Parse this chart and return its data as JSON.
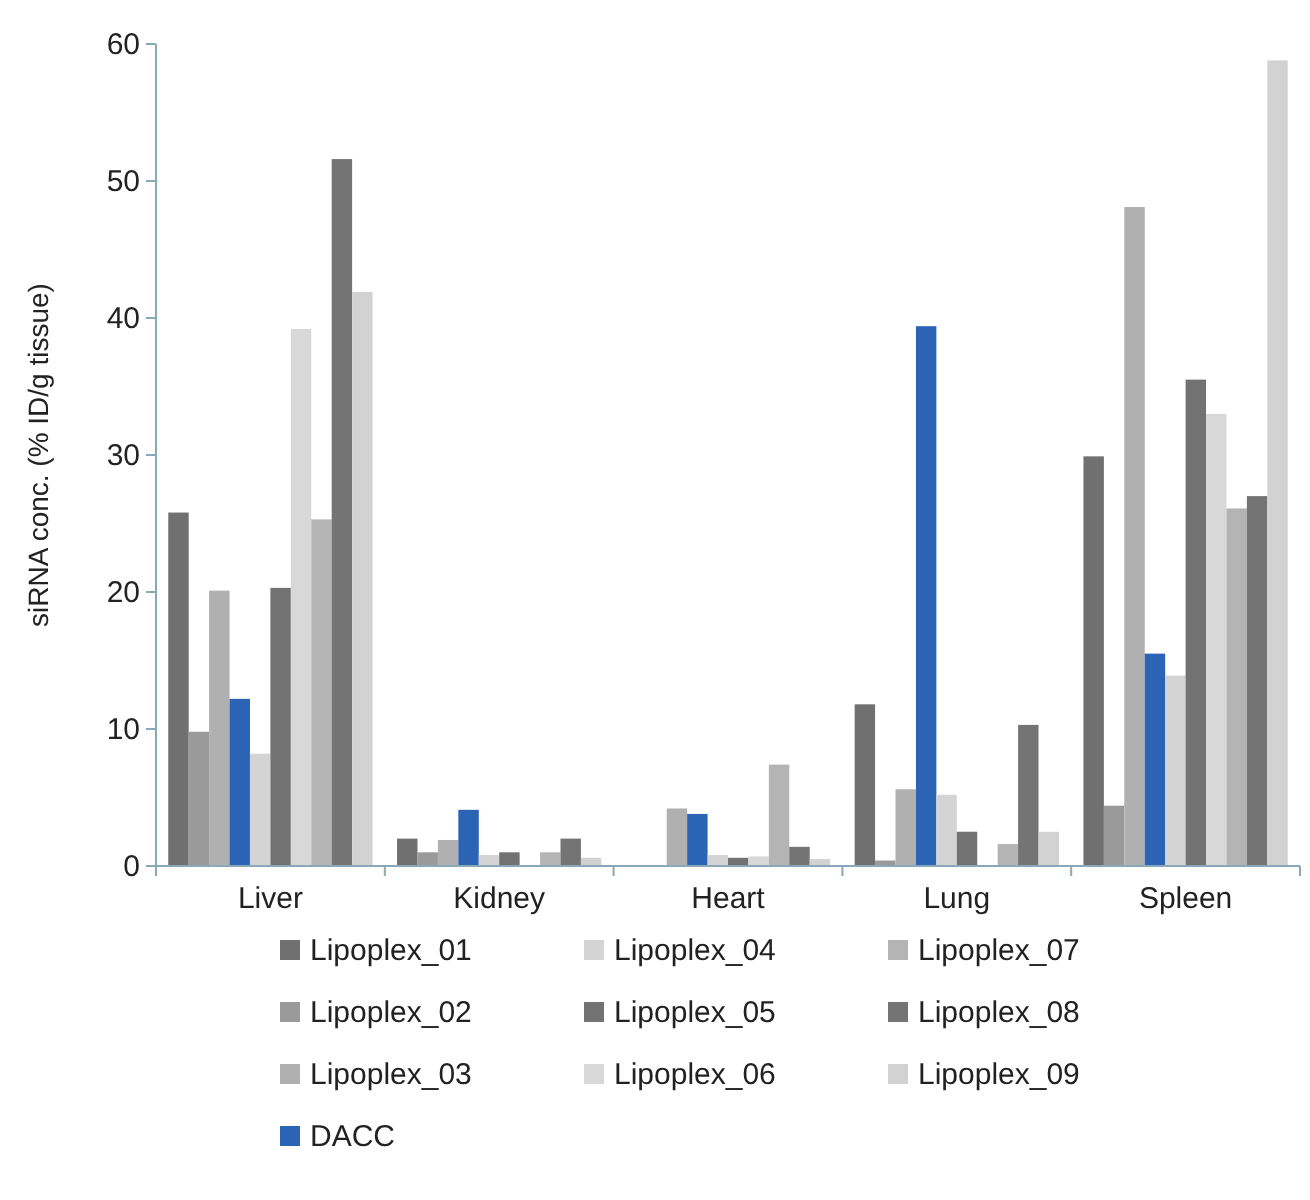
{
  "chart_data": {
    "type": "bar",
    "ylabel": "siRNA conc. (% ID/g tissue)",
    "categories": [
      "Liver",
      "Kidney",
      "Heart",
      "Lung",
      "Spleen"
    ],
    "series": [
      {
        "name": "Lipoplex_01",
        "color": "#707070",
        "values": [
          25.8,
          2.0,
          0,
          11.8,
          29.9
        ]
      },
      {
        "name": "Lipoplex_02",
        "color": "#9a9a9a",
        "values": [
          9.8,
          1.0,
          0,
          0.4,
          4.4
        ]
      },
      {
        "name": "Lipoplex_03",
        "color": "#b0b0b0",
        "values": [
          20.1,
          1.9,
          4.2,
          5.6,
          48.1
        ]
      },
      {
        "name": "DACC",
        "color": "#2b63b5",
        "values": [
          12.2,
          4.1,
          3.8,
          39.4,
          15.5
        ]
      },
      {
        "name": "Lipoplex_04",
        "color": "#d4d4d4",
        "values": [
          8.2,
          0.8,
          0.8,
          5.2,
          13.9
        ]
      },
      {
        "name": "Lipoplex_05",
        "color": "#727272",
        "values": [
          20.3,
          1.0,
          0.6,
          2.5,
          35.5
        ]
      },
      {
        "name": "Lipoplex_06",
        "color": "#d8d8d8",
        "values": [
          39.2,
          null,
          0.7,
          0,
          33.0
        ]
      },
      {
        "name": "Lipoplex_07",
        "color": "#b4b4b4",
        "values": [
          25.3,
          1.0,
          7.4,
          1.6,
          26.1
        ]
      },
      {
        "name": "Lipoplex_08",
        "color": "#747474",
        "values": [
          51.6,
          2.0,
          1.4,
          10.3,
          27.0
        ]
      },
      {
        "name": "Lipoplex_09",
        "color": "#d2d2d2",
        "values": [
          41.9,
          0.6,
          0.5,
          2.5,
          58.8
        ]
      }
    ],
    "ylim": [
      0,
      60
    ],
    "yticks": [
      0,
      10,
      20,
      30,
      40,
      50,
      60
    ],
    "grid": false,
    "legend": "bottom"
  }
}
